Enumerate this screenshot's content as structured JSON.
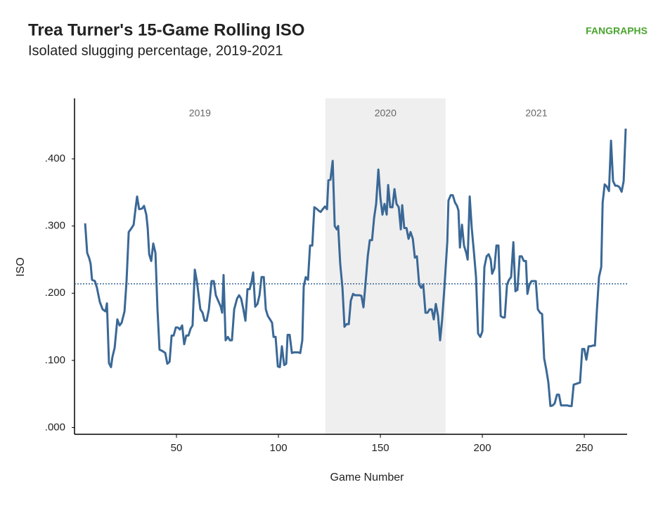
{
  "chart_data": {
    "type": "line",
    "title": "Trea Turner's 15-Game Rolling ISO",
    "subtitle": "Isolated slugging percentage, 2019-2021",
    "logo": "FANGRAPHS",
    "x_label": "Game Number",
    "y_label": "ISO",
    "xlim": [
      0,
      271
    ],
    "xticks": [
      50,
      100,
      150,
      200,
      250
    ],
    "ylim": [
      -0.01,
      0.49
    ],
    "yticks": [
      {
        "value": 0,
        "label": ".000"
      },
      {
        "value": 0.1,
        "label": ".100"
      },
      {
        "value": 0.2,
        "label": ".200"
      },
      {
        "value": 0.3,
        "label": ".300"
      },
      {
        "value": 0.4,
        "label": ".400"
      }
    ],
    "periods": [
      {
        "label": "2019",
        "start": 0,
        "end": 123,
        "shaded": false
      },
      {
        "label": "2020",
        "start": 123,
        "end": 182,
        "shaded": true
      },
      {
        "label": "2021",
        "start": 182,
        "end": 271,
        "shaded": false
      }
    ],
    "reference_line": 0.214,
    "reference_color": "#3a6896",
    "shade_color": "#efefef",
    "grid": false,
    "x": [
      5.2,
      6.2,
      7.2,
      7.9,
      8.6,
      10,
      11,
      12.4,
      13.8,
      15.2,
      15.9,
      16.9,
      17.9,
      18.6,
      19.7,
      21,
      22.1,
      23.1,
      24.5,
      25.5,
      26.6,
      28,
      29,
      30,
      30.7,
      31.7,
      33.1,
      34.1,
      35.2,
      35.9,
      36.6,
      37.6,
      38.6,
      39.7,
      40.7,
      41.7,
      43.1,
      44.5,
      45.5,
      46.6,
      47.6,
      48.6,
      49.7,
      50.7,
      51.7,
      52.8,
      53.8,
      54.8,
      55.9,
      56.9,
      57.9,
      59,
      60,
      61.7,
      62.8,
      63.8,
      64.8,
      65.9,
      67.2,
      68.3,
      69.3,
      70.7,
      71.7,
      72.4,
      73.1,
      74.1,
      75.2,
      76.2,
      77.2,
      78.3,
      79.7,
      80.7,
      81.7,
      82.8,
      83.8,
      84.8,
      85.9,
      86.9,
      87.6,
      88.6,
      89.7,
      90.7,
      91.7,
      92.8,
      93.8,
      94.8,
      95.9,
      96.9,
      97.6,
      98.6,
      99.7,
      100.7,
      101.7,
      102.8,
      103.8,
      104.5,
      105.5,
      106.6,
      107.6,
      108.6,
      109.7,
      110.7,
      111.7,
      112.4,
      113.4,
      114.5,
      115.5,
      116.6,
      117.6,
      118.6,
      119.7,
      120.7,
      121.7,
      122.8,
      123.8,
      124.5,
      125.5,
      126.6,
      127.6,
      128.6,
      129.3,
      130.3,
      131.4,
      132.4,
      133.4,
      134.5,
      135.5,
      136.6,
      137.6,
      138.6,
      139.7,
      140.7,
      141.7,
      142.8,
      143.8,
      144.8,
      145.9,
      146.9,
      147.9,
      149,
      150,
      151,
      152,
      153.1,
      153.8,
      154.8,
      155.9,
      156.9,
      157.9,
      159,
      160,
      160.7,
      161.7,
      162.8,
      163.8,
      164.8,
      165.9,
      166.9,
      167.9,
      169,
      170,
      171,
      172.1,
      173.1,
      174.1,
      175.2,
      176.2,
      177.2,
      178.3,
      179.3,
      180.3,
      181.4,
      182.8,
      183.4,
      184.5,
      185.5,
      186.6,
      187.6,
      188.3,
      189,
      190,
      191,
      192.1,
      192.8,
      193.8,
      194.8,
      195.9,
      196.9,
      197.9,
      199,
      200,
      201,
      202.1,
      203.1,
      204.1,
      204.8,
      205.9,
      206.9,
      207.9,
      209,
      210,
      211,
      212.1,
      213.1,
      214.1,
      215.2,
      216.2,
      217.2,
      218.3,
      219.3,
      220.3,
      221.4,
      222.1,
      223.1,
      224.1,
      225.2,
      226.2,
      227.2,
      228.3,
      229.3,
      230.3,
      231.4,
      232.4,
      233.4,
      234.5,
      235.5,
      236.6,
      237.6,
      238.6,
      239.7,
      240.7,
      241.7,
      242.8,
      243.8,
      244.8,
      245.9,
      246.9,
      247.9,
      249,
      250,
      251,
      252.1,
      253.1,
      254.1,
      255.2,
      256.2,
      257.2,
      258.3,
      259,
      260,
      261,
      262.1,
      263.1,
      264.1,
      265.2,
      266.2,
      267.2,
      268.3,
      269.3,
      270.3
    ],
    "series": [
      {
        "name": "ISO",
        "color": "#3a6896",
        "values": [
          0.304,
          0.26,
          0.252,
          0.244,
          0.22,
          0.218,
          0.208,
          0.187,
          0.176,
          0.173,
          0.185,
          0.096,
          0.09,
          0.105,
          0.119,
          0.161,
          0.152,
          0.156,
          0.173,
          0.218,
          0.291,
          0.297,
          0.302,
          0.328,
          0.344,
          0.325,
          0.326,
          0.33,
          0.317,
          0.297,
          0.258,
          0.248,
          0.274,
          0.26,
          0.176,
          0.116,
          0.114,
          0.111,
          0.095,
          0.098,
          0.137,
          0.137,
          0.149,
          0.149,
          0.146,
          0.152,
          0.124,
          0.137,
          0.137,
          0.147,
          0.152,
          0.235,
          0.218,
          0.176,
          0.171,
          0.159,
          0.159,
          0.176,
          0.218,
          0.218,
          0.197,
          0.187,
          0.18,
          0.171,
          0.227,
          0.13,
          0.135,
          0.13,
          0.13,
          0.176,
          0.192,
          0.197,
          0.192,
          0.176,
          0.159,
          0.206,
          0.206,
          0.218,
          0.231,
          0.18,
          0.184,
          0.197,
          0.224,
          0.224,
          0.176,
          0.166,
          0.161,
          0.156,
          0.135,
          0.135,
          0.091,
          0.09,
          0.121,
          0.093,
          0.095,
          0.138,
          0.138,
          0.111,
          0.112,
          0.112,
          0.112,
          0.111,
          0.13,
          0.21,
          0.224,
          0.22,
          0.271,
          0.271,
          0.328,
          0.326,
          0.323,
          0.321,
          0.325,
          0.329,
          0.325,
          0.368,
          0.369,
          0.397,
          0.3,
          0.295,
          0.3,
          0.244,
          0.208,
          0.15,
          0.154,
          0.154,
          0.189,
          0.199,
          0.197,
          0.197,
          0.197,
          0.196,
          0.179,
          0.218,
          0.255,
          0.279,
          0.279,
          0.312,
          0.333,
          0.384,
          0.342,
          0.317,
          0.333,
          0.317,
          0.361,
          0.328,
          0.328,
          0.355,
          0.333,
          0.328,
          0.295,
          0.331,
          0.297,
          0.297,
          0.281,
          0.291,
          0.281,
          0.253,
          0.255,
          0.213,
          0.208,
          0.213,
          0.171,
          0.171,
          0.176,
          0.176,
          0.161,
          0.184,
          0.166,
          0.13,
          0.161,
          0.208,
          0.276,
          0.338,
          0.346,
          0.346,
          0.335,
          0.33,
          0.323,
          0.268,
          0.302,
          0.271,
          0.26,
          0.25,
          0.344,
          0.297,
          0.26,
          0.224,
          0.14,
          0.135,
          0.143,
          0.239,
          0.255,
          0.258,
          0.25,
          0.229,
          0.237,
          0.271,
          0.271,
          0.166,
          0.164,
          0.164,
          0.213,
          0.22,
          0.224,
          0.276,
          0.203,
          0.205,
          0.255,
          0.255,
          0.248,
          0.248,
          0.199,
          0.213,
          0.218,
          0.218,
          0.218,
          0.176,
          0.171,
          0.169,
          0.103,
          0.086,
          0.067,
          0.032,
          0.033,
          0.036,
          0.049,
          0.049,
          0.033,
          0.033,
          0.033,
          0.033,
          0.032,
          0.032,
          0.064,
          0.065,
          0.066,
          0.067,
          0.117,
          0.117,
          0.101,
          0.121,
          0.121,
          0.122,
          0.122,
          0.176,
          0.224,
          0.239,
          0.335,
          0.362,
          0.359,
          0.352,
          0.427,
          0.367,
          0.36,
          0.36,
          0.358,
          0.351,
          0.367,
          0.445
        ]
      }
    ]
  }
}
